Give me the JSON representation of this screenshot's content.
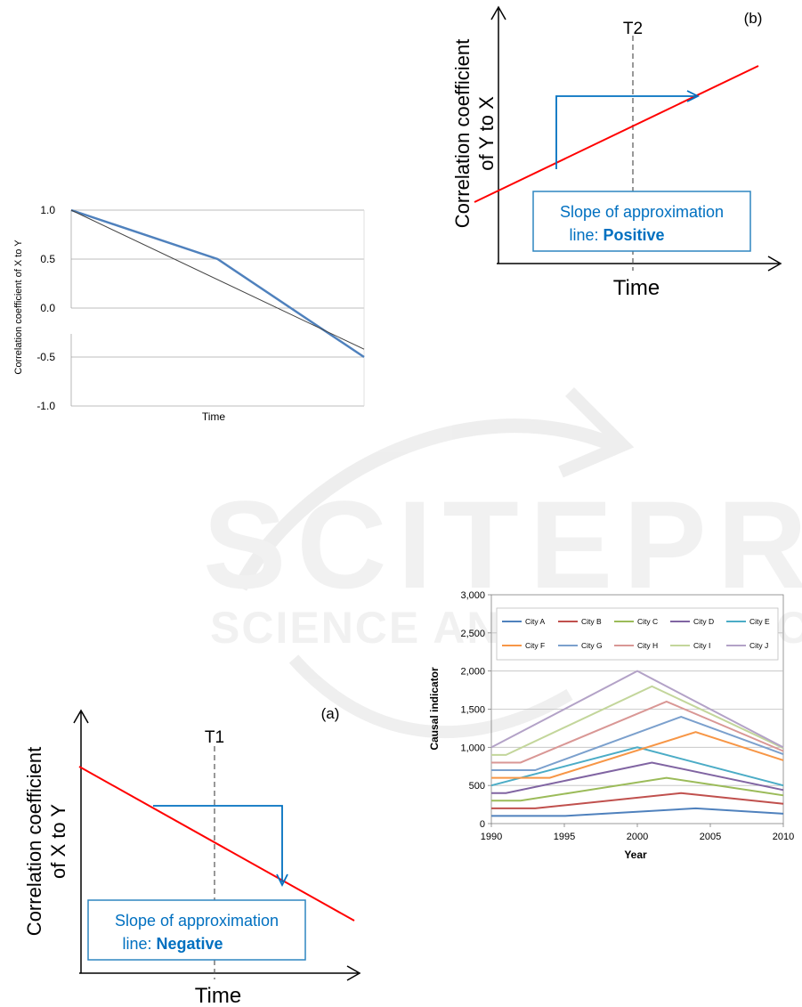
{
  "chart_data": [
    {
      "type": "line",
      "ylabel": "Correlation coefficient of X to Y",
      "xlabel": "Time",
      "yticks": [
        "1.0",
        "0.5",
        "0.0",
        "-0.5",
        "-1.0"
      ],
      "ylim": [
        -1.0,
        1.0
      ],
      "series": [
        {
          "x": [
            0,
            0.5,
            1.0
          ],
          "values": [
            1.0,
            0.5,
            -0.5
          ]
        },
        {
          "x": [
            0,
            1.0
          ],
          "values": [
            1.0,
            -0.42
          ]
        }
      ],
      "colors": [
        "#4f81bd",
        "#404040"
      ],
      "grid": true
    },
    {
      "type": "line",
      "panel": "(b)",
      "ylabel": "Correlation coefficient of Y to X",
      "xlabel": "Time",
      "marker": "T2",
      "box_text": "Slope of approximation line: ",
      "box_bold": "Positive",
      "colors": [
        "#ff0000",
        "#0070c0"
      ]
    },
    {
      "type": "line",
      "panel": "(a)",
      "ylabel": "Correlation coefficient of X to Y",
      "xlabel": "Time",
      "marker": "T1",
      "box_text": "Slope of approximation line: ",
      "box_bold": "Negative",
      "colors": [
        "#ff0000",
        "#0070c0"
      ]
    },
    {
      "type": "line",
      "xlabel": "Year",
      "ylabel": "Causal indicator",
      "ylim": [
        0,
        3000
      ],
      "yticks": [
        "0",
        "500",
        "1,000",
        "1,500",
        "2,000",
        "2,500",
        "3,000"
      ],
      "xlim": [
        1990,
        2010
      ],
      "xticks": [
        "1990",
        "1995",
        "2000",
        "2005",
        "2010"
      ],
      "grid": true,
      "legend": "top",
      "series": [
        {
          "name": "City A",
          "color": "#4f81bd",
          "x": [
            1990,
            1995,
            2004,
            2010
          ],
          "values": [
            100,
            100,
            200,
            130
          ]
        },
        {
          "name": "City B",
          "color": "#c0504d",
          "x": [
            1990,
            1993,
            2003,
            2010
          ],
          "values": [
            200,
            200,
            400,
            260
          ]
        },
        {
          "name": "City C",
          "color": "#9bbb59",
          "x": [
            1990,
            1992,
            2002,
            2010
          ],
          "values": [
            300,
            300,
            600,
            370
          ]
        },
        {
          "name": "City D",
          "color": "#8064a2",
          "x": [
            1990,
            1991,
            2001,
            2010
          ],
          "values": [
            400,
            400,
            800,
            440
          ]
        },
        {
          "name": "City E",
          "color": "#4bacc6",
          "x": [
            1990,
            2000,
            2010
          ],
          "values": [
            500,
            1000,
            500
          ]
        },
        {
          "name": "City F",
          "color": "#f79646",
          "x": [
            1990,
            1994,
            2004,
            2010
          ],
          "values": [
            600,
            600,
            1200,
            830
          ]
        },
        {
          "name": "City G",
          "color": "#7ba0cd",
          "x": [
            1990,
            1993,
            2003,
            2010
          ],
          "values": [
            700,
            700,
            1400,
            910
          ]
        },
        {
          "name": "City H",
          "color": "#d99795",
          "x": [
            1990,
            1992,
            2002,
            2010
          ],
          "values": [
            800,
            800,
            1600,
            950
          ]
        },
        {
          "name": "City I",
          "color": "#c3d69b",
          "x": [
            1990,
            1991,
            2001,
            2010
          ],
          "values": [
            900,
            900,
            1800,
            990
          ]
        },
        {
          "name": "City J",
          "color": "#b3a2c7",
          "x": [
            1990,
            2000,
            2010
          ],
          "values": [
            1000,
            2000,
            1000
          ]
        }
      ]
    }
  ]
}
